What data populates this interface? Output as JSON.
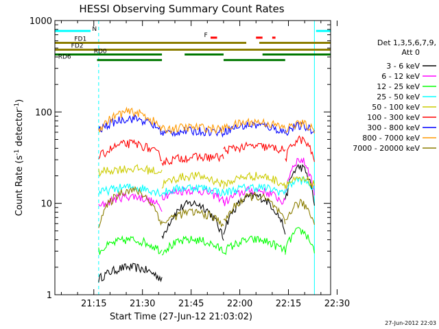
{
  "chart_data": {
    "type": "line",
    "title": "HESSI Observing Summary Count Rates",
    "xlabel": "Start Time (27-Jun-12 21:03:02)",
    "ylabel_main": "Count Rate (s",
    "ylabel_sup1": "-1",
    "ylabel_mid": " detector",
    "ylabel_sup2": "-1",
    "ylabel_end": ")",
    "yscale": "log",
    "ylim": [
      1,
      1000
    ],
    "xlim_min": [
      0,
      85
    ],
    "x_ticks": [
      {
        "label": "21:15",
        "m": 12
      },
      {
        "label": "21:30",
        "m": 27
      },
      {
        "label": "21:45",
        "m": 42
      },
      {
        "label": "22:00",
        "m": 57
      },
      {
        "label": "22:15",
        "m": 72
      },
      {
        "label": "22:30",
        "m": 87
      }
    ],
    "y_ticks": [
      {
        "label": "1",
        "v": 1
      },
      {
        "label": "10",
        "v": 10
      },
      {
        "label": "100",
        "v": 100
      },
      {
        "label": "1000",
        "v": 1000
      }
    ],
    "legend_title_1": "Det 1,3,5,6,7,9,",
    "legend_title_2": "Att 0",
    "series": [
      {
        "name": "3 - 6 keV",
        "color": "#000000"
      },
      {
        "name": "6 - 12 keV",
        "color": "#ff00ff"
      },
      {
        "name": "12 - 25 keV",
        "color": "#00ff00"
      },
      {
        "name": "25 - 50 keV",
        "color": "#00ffff"
      },
      {
        "name": "50 - 100 keV",
        "color": "#cccc00"
      },
      {
        "name": "100 - 300 keV",
        "color": "#ff0000"
      },
      {
        "name": "300 - 800 keV",
        "color": "#0000ff"
      },
      {
        "name": "800 - 7000 keV",
        "color": "#ff9900"
      },
      {
        "name": "7000 - 20000 keV",
        "color": "#8b7d00"
      }
    ],
    "segments": [
      [
        13.5,
        33
      ],
      [
        33,
        52
      ],
      [
        52,
        71
      ],
      [
        71,
        80
      ]
    ],
    "segment_levels": [
      [
        [
          1.5,
          2,
          1.5
        ],
        [
          4,
          10,
          4
        ],
        [
          5,
          12,
          5
        ],
        [
          10,
          25,
          10
        ]
      ],
      [
        [
          9,
          12,
          9
        ],
        [
          12,
          14,
          11
        ],
        [
          10,
          14,
          10
        ],
        [
          13,
          30,
          13
        ]
      ],
      [
        [
          3,
          4,
          3
        ],
        [
          3,
          4,
          3
        ],
        [
          3,
          4,
          3
        ],
        [
          3,
          5,
          3
        ]
      ],
      [
        [
          13,
          15,
          13
        ],
        [
          13,
          15,
          13
        ],
        [
          13,
          15,
          13
        ],
        [
          14,
          18,
          14
        ]
      ],
      [
        [
          22,
          24,
          22
        ],
        [
          16,
          20,
          16
        ],
        [
          16,
          20,
          16
        ],
        [
          16,
          18,
          16
        ]
      ],
      [
        [
          32,
          45,
          32
        ],
        [
          28,
          32,
          32
        ],
        [
          38,
          42,
          38
        ],
        [
          30,
          50,
          30
        ]
      ],
      [
        [
          62,
          85,
          62
        ],
        [
          58,
          62,
          60
        ],
        [
          62,
          72,
          60
        ],
        [
          60,
          70,
          60
        ]
      ],
      [
        [
          65,
          100,
          65
        ],
        [
          64,
          68,
          64
        ],
        [
          66,
          78,
          66
        ],
        [
          62,
          75,
          62
        ]
      ],
      [
        [
          6,
          14,
          6
        ],
        [
          6,
          8,
          6
        ],
        [
          6,
          12,
          6
        ],
        [
          6,
          10,
          6
        ]
      ]
    ],
    "status_bars": [
      {
        "label": "N",
        "color": "#00ffff",
        "y": 770,
        "segments": [
          [
            -2,
            11
          ],
          [
            80.5,
            86
          ]
        ]
      },
      {
        "label": "FD1",
        "color": "#8b7d00",
        "y": 570,
        "segments": [
          [
            -2,
            59
          ],
          [
            63,
            86
          ]
        ]
      },
      {
        "label": "FD2",
        "color": "#8b7d00",
        "y": 480,
        "segments": [
          [
            -2,
            86
          ]
        ]
      },
      {
        "label": "RD0",
        "color": "#007700",
        "y": 425,
        "segments": [
          [
            -2,
            33
          ],
          [
            40,
            52
          ],
          [
            64,
            86
          ]
        ]
      },
      {
        "label": "RD6",
        "color": "#007700",
        "y": 370,
        "segments": [
          [
            13,
            33
          ],
          [
            52,
            71
          ]
        ]
      },
      {
        "label": "F",
        "color": "#ff0000",
        "y": 650,
        "segments": [
          [
            48,
            50
          ],
          [
            62,
            64
          ],
          [
            67,
            68
          ]
        ]
      }
    ],
    "grid": false,
    "legend_position": "right"
  },
  "footer_date": "27-Jun-2012 22:03"
}
